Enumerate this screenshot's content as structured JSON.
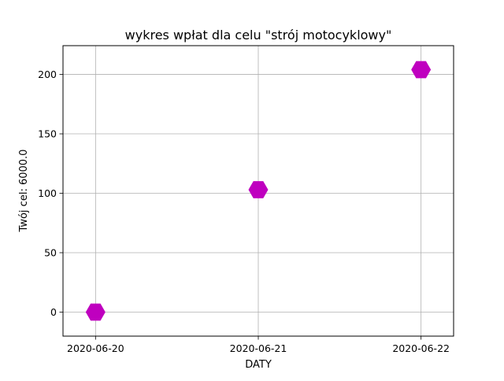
{
  "chart_data": {
    "type": "scatter",
    "title": "wykres wpłat dla celu \"strój motocyklowy\"",
    "xlabel": "DATY",
    "ylabel": "Twój cel: 6000.0",
    "x": [
      "2020-06-20",
      "2020-06-21",
      "2020-06-22"
    ],
    "values": [
      0,
      103,
      204
    ],
    "marker": "hexagon",
    "marker_color": "#bf00bf",
    "grid": true,
    "xlim": [
      "2020-06-19T19:12",
      "2020-06-22T04:48"
    ],
    "ylim": [
      -20.2,
      224.2
    ],
    "yticks": [
      0,
      50,
      100,
      150,
      200
    ],
    "xticks": [
      "2020-06-20",
      "2020-06-21",
      "2020-06-22"
    ]
  }
}
